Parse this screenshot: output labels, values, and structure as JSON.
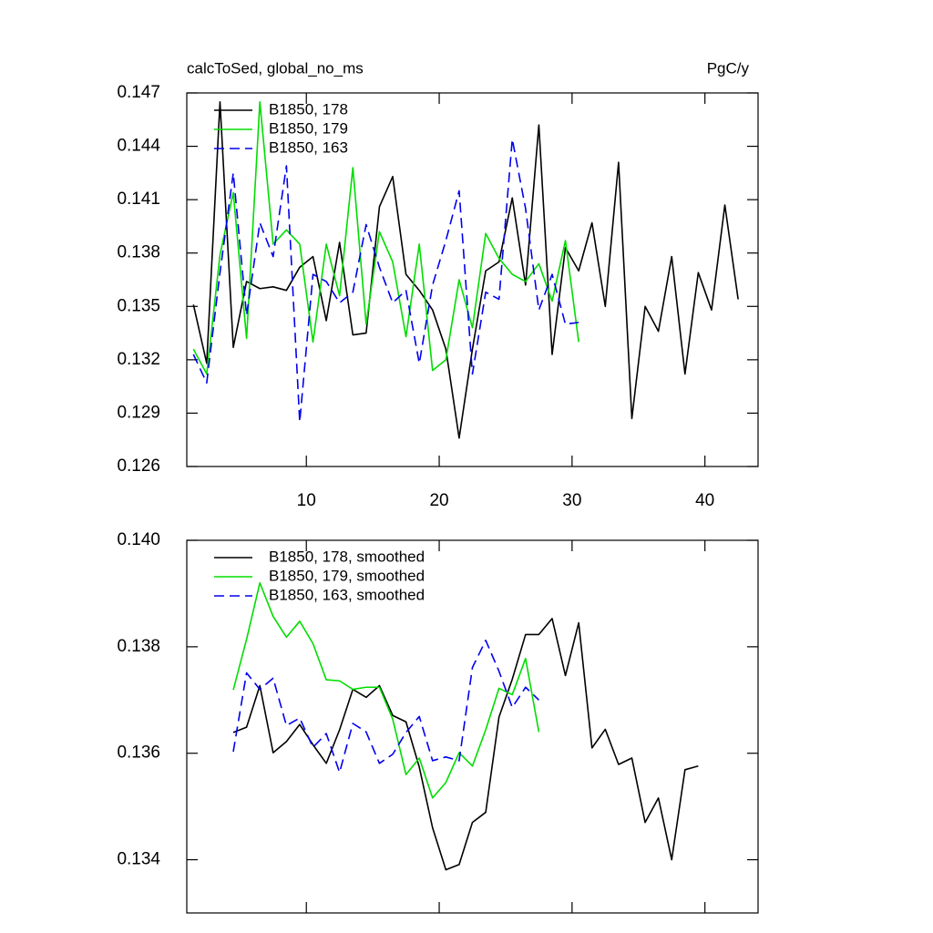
{
  "chart_data": [
    {
      "type": "line",
      "title": "calcToSed, global_no_ms",
      "units": "PgC/y",
      "xlim": [
        1,
        44
      ],
      "xticks": [
        10,
        20,
        30,
        40
      ],
      "xtick_labels": true,
      "ylim": [
        0.126,
        0.147
      ],
      "yticks": [
        0.126,
        0.129,
        0.132,
        0.135,
        0.138,
        0.141,
        0.144,
        0.147
      ],
      "legend": "upper left",
      "series": [
        {
          "name": "B1850, 178",
          "color": "#000000",
          "dash": false,
          "x": [
            1.5,
            2.5,
            3.5,
            4.5,
            5.5,
            6.5,
            7.5,
            8.5,
            9.5,
            10.5,
            11.5,
            12.5,
            13.5,
            14.5,
            15.5,
            16.5,
            17.5,
            18.5,
            19.5,
            20.5,
            21.5,
            22.5,
            23.5,
            24.5,
            25.5,
            26.5,
            27.5,
            28.5,
            29.5,
            30.5,
            31.5,
            32.5,
            33.5,
            34.5,
            35.5,
            36.5,
            37.5,
            38.5,
            39.5,
            40.5,
            41.5,
            42.5
          ],
          "values": [
            0.1351,
            0.1318,
            0.1465,
            0.1327,
            0.1364,
            0.136,
            0.1361,
            0.1359,
            0.1372,
            0.1378,
            0.1342,
            0.1386,
            0.1334,
            0.1335,
            0.1406,
            0.1423,
            0.1368,
            0.1359,
            0.1348,
            0.1326,
            0.1276,
            0.1326,
            0.137,
            0.1375,
            0.1411,
            0.1362,
            0.1452,
            0.1323,
            0.1383,
            0.137,
            0.1397,
            0.135,
            0.1431,
            0.1287,
            0.135,
            0.1336,
            0.1378,
            0.1312,
            0.1369,
            0.1348,
            0.1407,
            0.1354
          ]
        },
        {
          "name": "B1850, 179",
          "color": "#00dd00",
          "dash": false,
          "x": [
            1.5,
            2.5,
            3.5,
            4.5,
            5.5,
            6.5,
            7.5,
            8.5,
            9.5,
            10.5,
            11.5,
            12.5,
            13.5,
            14.5,
            15.5,
            16.5,
            17.5,
            18.5,
            19.5,
            20.5,
            21.5,
            22.5,
            23.5,
            24.5,
            25.5,
            26.5,
            27.5,
            28.5,
            29.5,
            30.5
          ],
          "values": [
            0.1326,
            0.1312,
            0.1379,
            0.1414,
            0.1332,
            0.1465,
            0.1385,
            0.1393,
            0.1385,
            0.133,
            0.1385,
            0.1356,
            0.1428,
            0.134,
            0.1392,
            0.1375,
            0.1333,
            0.1385,
            0.1314,
            0.132,
            0.1365,
            0.1338,
            0.1391,
            0.1377,
            0.1368,
            0.1364,
            0.1374,
            0.1353,
            0.1387,
            0.133
          ]
        },
        {
          "name": "B1850, 163",
          "color": "#0000ee",
          "dash": true,
          "x": [
            1.5,
            2.5,
            3.5,
            4.5,
            5.5,
            6.5,
            7.5,
            8.5,
            9.5,
            10.5,
            11.5,
            12.5,
            13.5,
            14.5,
            15.5,
            16.5,
            17.5,
            18.5,
            19.5,
            20.5,
            21.5,
            22.5,
            23.5,
            24.5,
            25.5,
            26.5,
            27.5,
            28.5,
            29.5,
            30.5
          ],
          "values": [
            0.1323,
            0.1307,
            0.1369,
            0.1425,
            0.1345,
            0.1397,
            0.1378,
            0.1429,
            0.1285,
            0.1368,
            0.1364,
            0.1352,
            0.1358,
            0.1396,
            0.1372,
            0.1352,
            0.1359,
            0.1318,
            0.1362,
            0.1387,
            0.1415,
            0.1312,
            0.1358,
            0.1354,
            0.1444,
            0.1405,
            0.1348,
            0.1368,
            0.134,
            0.1341
          ]
        }
      ]
    },
    {
      "type": "line",
      "xlim": [
        1,
        44
      ],
      "xticks": [
        10,
        20,
        30,
        40
      ],
      "xtick_labels": false,
      "ylim": [
        0.133,
        0.14
      ],
      "yticks": [
        0.134,
        0.136,
        0.138,
        {
          "value": 0.14,
          "label": "0.140"
        }
      ],
      "legend": "upper left",
      "series": [
        {
          "name": "B1850, 178, smoothed",
          "color": "#000000",
          "dash": false,
          "x": [
            4.5,
            5.5,
            6.5,
            7.5,
            8.5,
            9.5,
            10.5,
            11.5,
            12.5,
            13.5,
            14.5,
            15.5,
            16.5,
            17.5,
            18.5,
            19.5,
            20.5,
            21.5,
            22.5,
            23.5,
            24.5,
            25.5,
            26.5,
            27.5,
            28.5,
            29.5,
            30.5,
            31.5,
            32.5,
            33.5,
            34.5,
            35.5,
            36.5,
            37.5,
            38.5,
            39.5
          ],
          "values": [
            0.13639,
            0.13649,
            0.13727,
            0.13601,
            0.13622,
            0.13654,
            0.13616,
            0.13581,
            0.13644,
            0.1372,
            0.13705,
            0.13727,
            0.13671,
            0.13659,
            0.13574,
            0.1346,
            0.13381,
            0.13391,
            0.1347,
            0.13489,
            0.13668,
            0.13739,
            0.13823,
            0.13823,
            0.13853,
            0.13746,
            0.13845,
            0.1361,
            0.13645,
            0.13579,
            0.13591,
            0.1347,
            0.13516,
            0.134,
            0.13569,
            0.13576
          ]
        },
        {
          "name": "B1850, 179, smoothed",
          "color": "#00dd00",
          "dash": false,
          "x": [
            4.5,
            5.5,
            6.5,
            7.5,
            8.5,
            9.5,
            10.5,
            11.5,
            12.5,
            13.5,
            14.5,
            15.5,
            16.5,
            17.5,
            18.5,
            19.5,
            20.5,
            21.5,
            22.5,
            23.5,
            24.5,
            25.5,
            26.5,
            27.5
          ],
          "values": [
            0.13719,
            0.13814,
            0.1392,
            0.13857,
            0.13818,
            0.13848,
            0.13806,
            0.13738,
            0.13736,
            0.1372,
            0.13724,
            0.13724,
            0.13664,
            0.1356,
            0.13591,
            0.13516,
            0.13545,
            0.13601,
            0.13576,
            0.13644,
            0.13722,
            0.1371,
            0.13778,
            0.1364
          ]
        },
        {
          "name": "B1850, 163, smoothed",
          "color": "#0000ee",
          "dash": true,
          "x": [
            4.5,
            5.5,
            6.5,
            7.5,
            8.5,
            9.5,
            10.5,
            11.5,
            12.5,
            13.5,
            14.5,
            15.5,
            16.5,
            17.5,
            18.5,
            19.5,
            20.5,
            21.5,
            22.5,
            23.5,
            24.5,
            25.5,
            26.5,
            27.5
          ],
          "values": [
            0.13603,
            0.13751,
            0.1372,
            0.13741,
            0.13652,
            0.13666,
            0.13611,
            0.13637,
            0.13564,
            0.13656,
            0.1364,
            0.13581,
            0.13598,
            0.13639,
            0.13669,
            0.13586,
            0.13593,
            0.13586,
            0.13761,
            0.13812,
            0.13754,
            0.13686,
            0.13724,
            0.137
          ]
        }
      ]
    }
  ]
}
